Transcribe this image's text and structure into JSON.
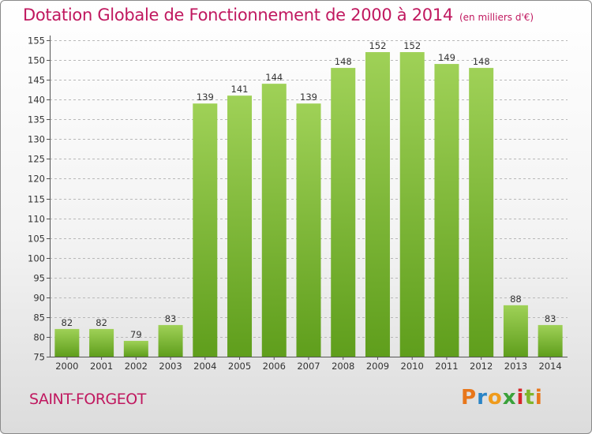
{
  "header": {
    "title": "Dotation Globale de Fonctionnement de 2000 à 2014",
    "unit": "(en milliers d'€)"
  },
  "commune": "SAINT-FORGEOT",
  "logo": {
    "letters": [
      "P",
      "r",
      "o",
      "x",
      "i",
      "t",
      "i"
    ]
  },
  "colors": {
    "bar_top": "#9fd157",
    "bar_bottom": "#5f9e1c",
    "title": "#c0185f"
  },
  "chart_data": {
    "type": "bar",
    "title": "Dotation Globale de Fonctionnement de 2000 à 2014",
    "subtitle": "(en milliers d'€)",
    "xlabel": "",
    "ylabel": "",
    "categories": [
      "2000",
      "2001",
      "2002",
      "2003",
      "2004",
      "2005",
      "2006",
      "2007",
      "2008",
      "2009",
      "2010",
      "2011",
      "2012",
      "2013",
      "2014"
    ],
    "values": [
      82,
      82,
      79,
      83,
      139,
      141,
      144,
      139,
      148,
      152,
      152,
      149,
      148,
      88,
      83
    ],
    "ylim": [
      75,
      155
    ],
    "yticks": [
      75,
      80,
      85,
      90,
      95,
      100,
      105,
      110,
      115,
      120,
      125,
      130,
      135,
      140,
      145,
      150,
      155
    ],
    "grid": true
  }
}
